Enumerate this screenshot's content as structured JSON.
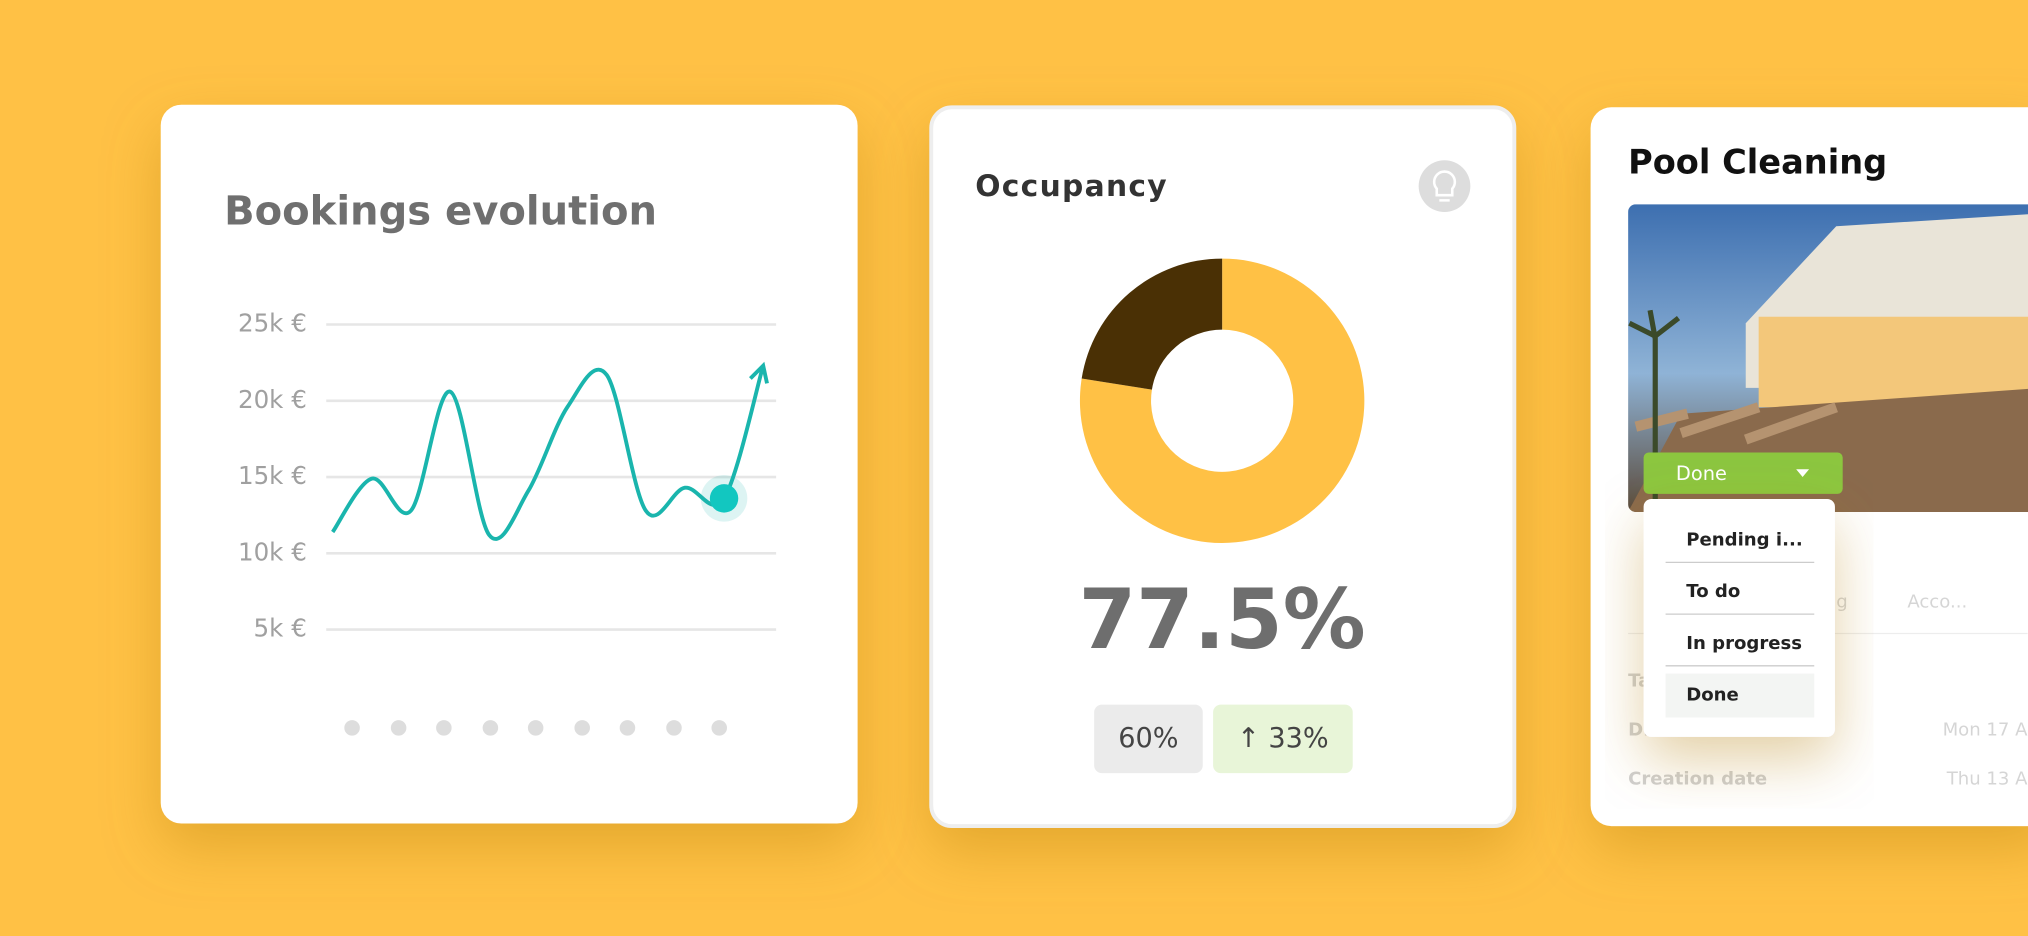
{
  "chart_data": [
    {
      "type": "line",
      "title": "Bookings evolution",
      "series": [
        {
          "color": "#1ab5ad",
          "values": [
            11400,
            14900,
            12800,
            20600,
            11200,
            14100,
            19600,
            21700,
            12800,
            14300,
            13600,
            22300
          ]
        }
      ],
      "highlight": 10,
      "ylim": [
        5000,
        25000
      ],
      "yticks": [
        {
          "value": 25000,
          "label": "25k €"
        },
        {
          "value": 20000,
          "label": "20k €"
        },
        {
          "value": 15000,
          "label": "15k €"
        },
        {
          "value": 10000,
          "label": "10k €"
        },
        {
          "value": 5000,
          "label": "5k €"
        }
      ],
      "grid": true
    },
    {
      "type": "pie",
      "title": "Occupancy",
      "values": [
        77.5,
        22.5
      ],
      "colors": [
        "#ffc145",
        "#4a3005"
      ],
      "center_label": "77.5%",
      "badges": [
        "60%",
        "↑ 33%"
      ]
    }
  ],
  "pool_card": {
    "title": "Pool Cleaning",
    "status": "Done",
    "menu": [
      "Pending i...",
      "To do",
      "In progress",
      "Done"
    ],
    "tabs": [
      "g",
      "Acco..."
    ],
    "rows": [
      [
        "Ta",
        ""
      ],
      [
        "D...",
        "Mon 17 A"
      ],
      [
        "Creation date",
        "Thu 13 A"
      ]
    ]
  }
}
